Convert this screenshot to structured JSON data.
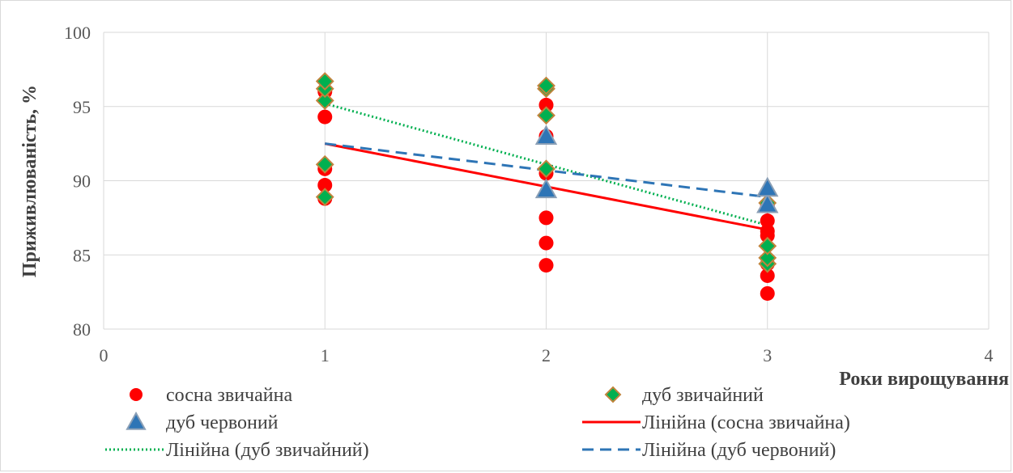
{
  "chart_data": {
    "type": "scatter",
    "title": "",
    "xlabel": "Роки вирощування",
    "ylabel": "Приживлюваність, %",
    "xlim": [
      0,
      4
    ],
    "ylim": [
      80,
      100
    ],
    "x_ticks": [
      "0",
      "1",
      "2",
      "3",
      "4"
    ],
    "y_ticks": [
      "80",
      "85",
      "90",
      "95",
      "100"
    ],
    "grid": true,
    "legend_position": "bottom",
    "series": [
      {
        "name": "сосна звичайна",
        "marker": "circle",
        "color": "#ff0000",
        "points": [
          [
            1,
            88.8
          ],
          [
            1,
            89.7
          ],
          [
            1,
            90.8
          ],
          [
            1,
            94.3
          ],
          [
            1,
            96.0
          ],
          [
            2,
            84.3
          ],
          [
            2,
            85.8
          ],
          [
            2,
            87.5
          ],
          [
            2,
            90.5
          ],
          [
            2,
            93.0
          ],
          [
            2,
            95.1
          ],
          [
            3,
            82.4
          ],
          [
            3,
            83.6
          ],
          [
            3,
            84.4
          ],
          [
            3,
            86.3
          ],
          [
            3,
            86.6
          ],
          [
            3,
            87.3
          ],
          [
            3,
            88.3
          ]
        ]
      },
      {
        "name": "дуб звичайний",
        "marker": "diamond",
        "color": "#00b050",
        "edge_color": "#c0843c",
        "points": [
          [
            1,
            88.9
          ],
          [
            1,
            91.1
          ],
          [
            1,
            95.4
          ],
          [
            1,
            96.2
          ],
          [
            1,
            96.7
          ],
          [
            2,
            90.8
          ],
          [
            2,
            94.4
          ],
          [
            2,
            96.2
          ],
          [
            2,
            96.4
          ],
          [
            3,
            84.4
          ],
          [
            3,
            84.8
          ],
          [
            3,
            85.6
          ],
          [
            3,
            88.5
          ]
        ]
      },
      {
        "name": "дуб червоний",
        "marker": "triangle",
        "color": "#2e75b6",
        "edge_color": "#8a9fb6",
        "points": [
          [
            2,
            89.4
          ],
          [
            2,
            93.0
          ],
          [
            3,
            88.4
          ],
          [
            3,
            89.5
          ]
        ]
      }
    ],
    "trendlines": [
      {
        "name": "Лінійна (сосна звичайна)",
        "style": "solid",
        "color": "#ff0000",
        "x": [
          1,
          3
        ],
        "y": [
          92.5,
          86.7
        ]
      },
      {
        "name": "Лінійна (дуб звичайний)",
        "style": "dotted",
        "color": "#00b050",
        "x": [
          1,
          3
        ],
        "y": [
          95.2,
          87.0
        ]
      },
      {
        "name": "Лінійна (дуб червоний)",
        "style": "dashed",
        "color": "#2e75b6",
        "x": [
          1,
          3
        ],
        "y": [
          92.5,
          88.9
        ]
      }
    ],
    "legend": [
      {
        "label": "сосна звичайна",
        "symbol": "circle",
        "color": "#ff0000"
      },
      {
        "label": "дуб звичайний",
        "symbol": "diamond",
        "color": "#00b050"
      },
      {
        "label": "дуб червоний",
        "symbol": "triangle",
        "color": "#2e75b6"
      },
      {
        "label": "Лінійна (сосна звичайна)",
        "symbol": "solid",
        "color": "#ff0000"
      },
      {
        "label": "Лінійна (дуб звичайний)",
        "symbol": "dotted",
        "color": "#00b050"
      },
      {
        "label": "Лінійна (дуб червоний)",
        "symbol": "dashed",
        "color": "#2e75b6"
      }
    ]
  }
}
